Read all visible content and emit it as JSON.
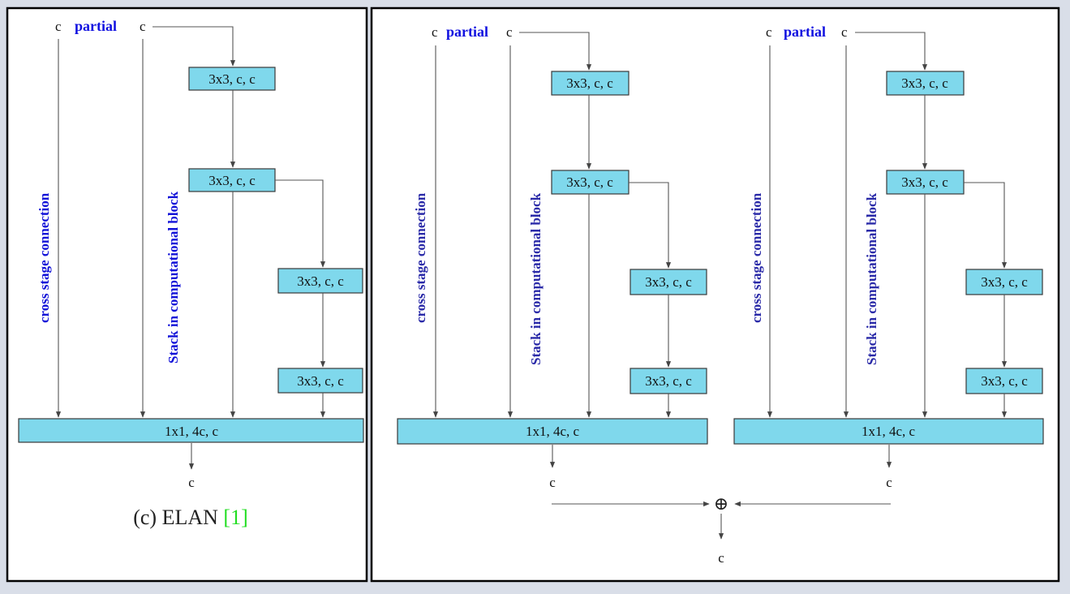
{
  "panels": {
    "left": {
      "input_c_left": "c",
      "partial": "partial",
      "input_c_right": "c",
      "cross_stage_label": "cross stage connection",
      "stack_label": "Stack in computational block",
      "conv_blocks": [
        "3x3, c, c",
        "3x3, c, c",
        "3x3, c, c",
        "3x3, c, c"
      ],
      "transition": "1x1, 4c, c",
      "output_c": "c",
      "caption_text": "(c) ELAN ",
      "caption_ref": "[1]"
    },
    "right": {
      "branches": [
        {
          "input_c_left": "c",
          "partial": "partial",
          "input_c_right": "c",
          "cross_stage_label": "cross stage connection",
          "stack_label": "Stack in computational block",
          "conv_blocks": [
            "3x3, c, c",
            "3x3, c, c",
            "3x3, c, c",
            "3x3, c, c"
          ],
          "transition": "1x1, 4c, c",
          "output_c": "c"
        },
        {
          "input_c_left": "c",
          "partial": "partial",
          "input_c_right": "c",
          "cross_stage_label": "cross stage connection",
          "stack_label": "Stack in computational block",
          "conv_blocks": [
            "3x3, c, c",
            "3x3, c, c",
            "3x3, c, c",
            "3x3, c, c"
          ],
          "transition": "1x1, 4c, c",
          "output_c": "c"
        }
      ],
      "sum_symbol": "⊕",
      "final_output": "c"
    }
  },
  "colors": {
    "block_fill": "#7fd8ec",
    "label_blue": "#1212d8",
    "label_blue_muted": "#2a2aa8",
    "ref_green": "#22dd22",
    "background": "#d9dee8"
  }
}
